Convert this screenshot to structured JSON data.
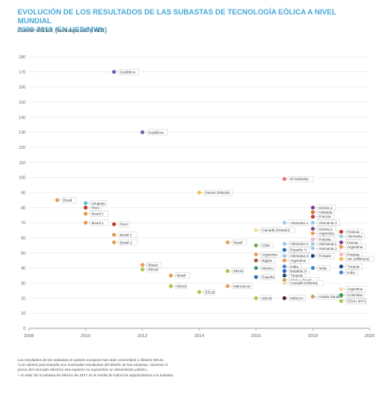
{
  "header": {
    "title_line1": "EVOLUCIÓN DE LOS RESULTADOS DE LAS SUBASTAS DE TECNOLOGÍA EÓLICA A NIVEL MUNDIAL",
    "title_line2": "2009-2019 (EN USD/MWh)",
    "source": "Fuente: IRENA, Recharge, AIE y AEE"
  },
  "notes": [
    "Los resultados de las subastas en países europeos han sido convertidos a dólares EEUU.",
    "*Los valores para España son nominales resultantes del diseño de las subastas, mientras el",
    "precio del mercado eléctrico sea superior no supondrán un desembolso público.",
    "+ el valor de la subasta de México de 2017 es la media de todos los adjudicatarios a la subasta."
  ],
  "chart_data": {
    "type": "scatter",
    "xlim": [
      2008,
      2020
    ],
    "ylim": [
      0,
      180
    ],
    "x_ticks": [
      2008,
      2010,
      2012,
      2014,
      2016,
      2018,
      2020
    ],
    "y_ticks": [
      0,
      10,
      20,
      30,
      40,
      50,
      60,
      70,
      80,
      90,
      100,
      110,
      120,
      130,
      140,
      150,
      160,
      170,
      180
    ],
    "grid": "horizontal",
    "legend": "none",
    "points": [
      {
        "label": "Sudáfrica",
        "x": 2011,
        "y": 170,
        "color": "#6f5da8"
      },
      {
        "label": "Sudáfrica",
        "x": 2012,
        "y": 130,
        "color": "#6f5da8"
      },
      {
        "label": "Brasil",
        "x": 2009,
        "y": 85,
        "color": "#ea9a4a"
      },
      {
        "label": "Uruguay",
        "x": 2010,
        "y": 83,
        "color": "#56bfe6"
      },
      {
        "label": "Perú",
        "x": 2010,
        "y": 80,
        "color": "#c0392b"
      },
      {
        "label": "Brasil 2",
        "x": 2010,
        "y": 76,
        "color": "#ea9a4a"
      },
      {
        "label": "Brasil 1",
        "x": 2010,
        "y": 70,
        "color": "#ea9a4a"
      },
      {
        "label": "Perú",
        "x": 2011,
        "y": 69,
        "color": "#c0392b"
      },
      {
        "label": "Brasil 1",
        "x": 2011,
        "y": 62,
        "color": "#ea9a4a"
      },
      {
        "label": "Brasil 2",
        "x": 2011,
        "y": 57,
        "color": "#ea9a4a"
      },
      {
        "label": "Brasil",
        "x": 2012,
        "y": 42,
        "color": "#ea9a4a"
      },
      {
        "label": "EEUU",
        "x": 2012,
        "y": 39,
        "color": "#a8c847"
      },
      {
        "label": "Brasil",
        "x": 2013,
        "y": 35,
        "color": "#ea9a4a"
      },
      {
        "label": "EEUU",
        "x": 2013,
        "y": 28,
        "color": "#a8c847"
      },
      {
        "label": "Nueva Zelanda",
        "x": 2014,
        "y": 90,
        "color": "#f3c23c"
      },
      {
        "label": "EEUU",
        "x": 2014,
        "y": 24,
        "color": "#a8c847"
      },
      {
        "label": "Brasil",
        "x": 2015,
        "y": 57,
        "color": "#ea9a4a"
      },
      {
        "label": "EEUU",
        "x": 2015,
        "y": 38,
        "color": "#a8c847"
      },
      {
        "label": "Marruecos",
        "x": 2015,
        "y": 28,
        "color": "#ea9a4a"
      },
      {
        "label": "Canadá (Ontario)",
        "x": 2016,
        "y": 65,
        "color": "#f7d9a3"
      },
      {
        "label": "Chile",
        "x": 2016,
        "y": 55,
        "color": "#6aa84f"
      },
      {
        "label": "Argentina",
        "x": 2016,
        "y": 49,
        "color": "#ea9a4a"
      },
      {
        "label": "Egipto",
        "x": 2016,
        "y": 45,
        "color": "#a0522d"
      },
      {
        "label": "México",
        "x": 2016,
        "y": 40,
        "color": "#2e9e5b"
      },
      {
        "label": "España",
        "x": 2016,
        "y": 34,
        "color": "#1e6bb8"
      },
      {
        "label": "EEUU",
        "x": 2016,
        "y": 20,
        "color": "#a8c847"
      },
      {
        "label": "El Salvador",
        "x": 2017,
        "y": 99,
        "color": "#e8727e"
      },
      {
        "label": "Alemania 1",
        "x": 2017,
        "y": 70,
        "color": "#9fcbe8"
      },
      {
        "label": "Alemania 2",
        "x": 2017,
        "y": 56,
        "color": "#9fcbe8"
      },
      {
        "label": "España *1",
        "x": 2017,
        "y": 52,
        "color": "#1e6bb8"
      },
      {
        "label": "Alemania 3",
        "x": 2017,
        "y": 48,
        "color": "#9fcbe8"
      },
      {
        "label": "Argentina",
        "x": 2017,
        "y": 45,
        "color": "#ea9a4a"
      },
      {
        "label": "India",
        "x": 2017,
        "y": 41,
        "color": "#3d85c6"
      },
      {
        "label": "España *2",
        "x": 2017,
        "y": 38,
        "color": "#1e6bb8"
      },
      {
        "label": "Turquía",
        "x": 2017,
        "y": 35,
        "color": "#1c4587"
      },
      {
        "label": "Chile y Brasil",
        "x": 2017,
        "y": 32,
        "color": "#c5a35a"
      },
      {
        "label": "Canadá (Alberta)",
        "x": 2017,
        "y": 30,
        "color": "#f7d9a3"
      },
      {
        "label": "México+",
        "x": 2017,
        "y": 20,
        "color": "#4a1f1f"
      },
      {
        "label": "Grecia 1",
        "x": 2018,
        "y": 80,
        "color": "#7a3f93"
      },
      {
        "label": "Holanda",
        "x": 2018,
        "y": 77,
        "color": "#d86a2c"
      },
      {
        "label": "Francia",
        "x": 2018,
        "y": 74,
        "color": "#c0392b"
      },
      {
        "label": "Alemania 3",
        "x": 2018,
        "y": 70,
        "color": "#9fcbe8"
      },
      {
        "label": "Grecia 2",
        "x": 2018,
        "y": 66,
        "color": "#7a3f93"
      },
      {
        "label": "Argentina",
        "x": 2018,
        "y": 63,
        "color": "#ea9a4a"
      },
      {
        "label": "Polonia",
        "x": 2018,
        "y": 59,
        "color": "#f4b6c2"
      },
      {
        "label": "Alemania 1",
        "x": 2018,
        "y": 56,
        "color": "#9fcbe8"
      },
      {
        "label": "Alemania 2",
        "x": 2018,
        "y": 53,
        "color": "#9fcbe8"
      },
      {
        "label": "Turquía",
        "x": 2018,
        "y": 48,
        "color": "#1c4587"
      },
      {
        "label": "India",
        "x": 2018,
        "y": 40,
        "color": "#3d85c6"
      },
      {
        "label": "Arabia Saudita",
        "x": 2018,
        "y": 21,
        "color": "#c5a35a"
      },
      {
        "label": "Francia",
        "x": 2019,
        "y": 64,
        "color": "#c0392b"
      },
      {
        "label": "Alemania",
        "x": 2019,
        "y": 61,
        "color": "#9fcbe8"
      },
      {
        "label": "Grecia",
        "x": 2019,
        "y": 57,
        "color": "#7a3f93"
      },
      {
        "label": "Argentina",
        "x": 2019,
        "y": 54,
        "color": "#ea9a4a"
      },
      {
        "label": "Polonia",
        "x": 2019,
        "y": 49,
        "color": "#f4b6c2"
      },
      {
        "label": "UK (Offshore)",
        "x": 2019,
        "y": 46,
        "color": "#f3c23c"
      },
      {
        "label": "Turquía",
        "x": 2019,
        "y": 41,
        "color": "#1c4587"
      },
      {
        "label": "India",
        "x": 2019,
        "y": 37,
        "color": "#3d85c6"
      },
      {
        "label": "Argentina",
        "x": 2019,
        "y": 26,
        "color": "#f7d9a3"
      },
      {
        "label": "Colombia",
        "x": 2019,
        "y": 22,
        "color": "#2e9e5b"
      },
      {
        "label": "EEUU (NY)",
        "x": 2019,
        "y": 18,
        "color": "#a8c847"
      }
    ]
  }
}
